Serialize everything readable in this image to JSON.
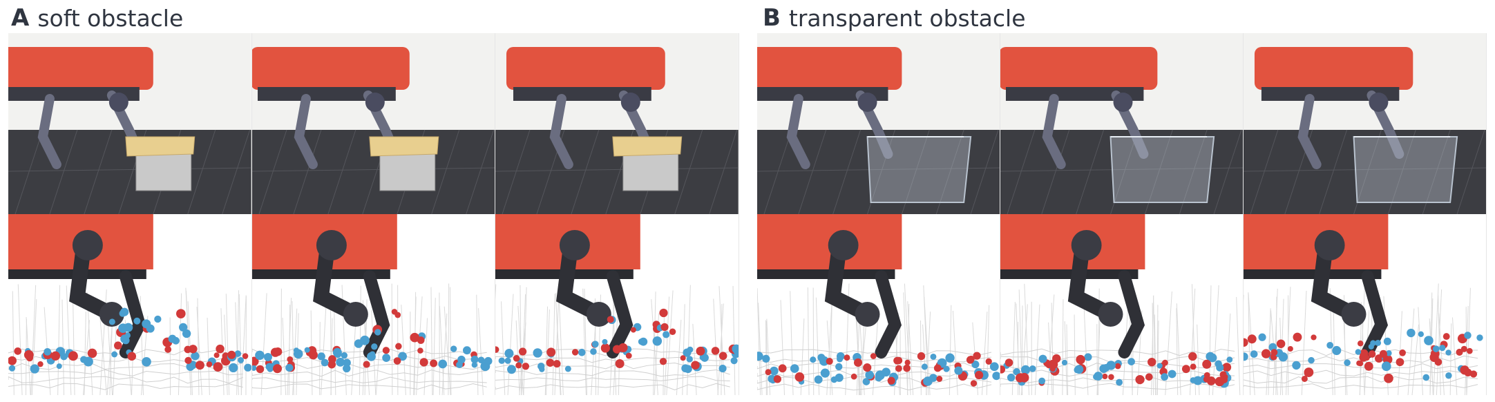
{
  "panels": [
    {
      "letter": "A",
      "title": "soft obstacle",
      "obstacle": "soft"
    },
    {
      "letter": "B",
      "title": "transparent obstacle",
      "obstacle": "transparent"
    }
  ],
  "colors": {
    "robot_body": "#e2533f",
    "robot_dark": "#2f3036",
    "floor": "#3c3d42",
    "wall": "#f2f2f0",
    "foam": "#e8cf8f",
    "glass": "#cfd8e3",
    "point_blue": "#4a9fd0",
    "point_red": "#d23a3a"
  }
}
